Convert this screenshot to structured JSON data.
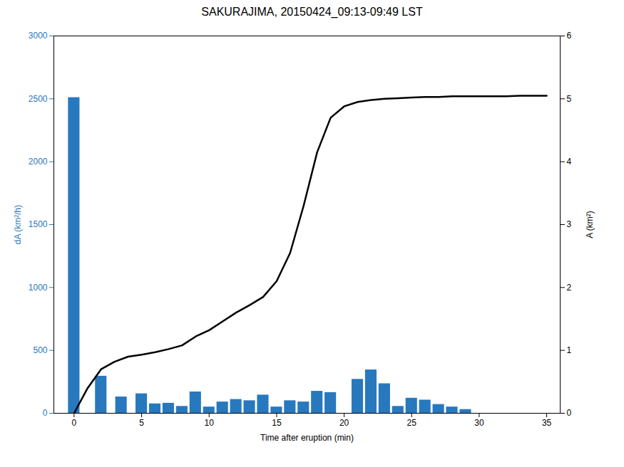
{
  "chart_data": {
    "type": "bar",
    "title": "SAKURAJIMA, 20150424_09:13-09:49 LST",
    "xlabel": "Time after eruption (min)",
    "ylabel": "dA (km²/h)",
    "y2label": "A (km²)",
    "series": [
      {
        "type": "bar",
        "color": "#2878BE",
        "x": [
          0,
          2,
          3.5,
          5,
          6,
          7,
          8,
          9,
          10,
          11,
          12,
          13,
          14,
          15,
          16,
          17,
          18,
          19,
          20,
          21,
          22,
          23,
          24,
          25,
          26,
          27,
          28,
          29,
          30,
          31,
          32,
          33,
          34
        ],
        "values": [
          2510,
          295,
          130,
          155,
          75,
          80,
          55,
          170,
          50,
          90,
          110,
          100,
          145,
          50,
          100,
          90,
          175,
          165,
          0,
          270,
          345,
          235,
          55,
          120,
          105,
          70,
          50,
          30,
          0,
          0,
          0,
          0,
          0
        ]
      },
      {
        "type": "line",
        "axis": "y2",
        "color": "#000000",
        "x": [
          0,
          1,
          2,
          3,
          4,
          5,
          6,
          7,
          8,
          9,
          10,
          11,
          12,
          13,
          14,
          15,
          16,
          17,
          18,
          19,
          20,
          21,
          22,
          23,
          24,
          25,
          26,
          27,
          28,
          29,
          30,
          31,
          32,
          33,
          34,
          35
        ],
        "values": [
          0.0,
          0.4,
          0.7,
          0.82,
          0.9,
          0.93,
          0.97,
          1.02,
          1.08,
          1.22,
          1.32,
          1.46,
          1.6,
          1.72,
          1.85,
          2.1,
          2.55,
          3.3,
          4.15,
          4.7,
          4.88,
          4.95,
          4.98,
          5.0,
          5.01,
          5.02,
          5.03,
          5.03,
          5.04,
          5.04,
          5.04,
          5.04,
          5.04,
          5.05,
          5.05,
          5.05
        ]
      }
    ],
    "xlim": [
      -1.5,
      36
    ],
    "xticks": [
      0,
      5,
      10,
      15,
      20,
      25,
      30,
      35
    ],
    "ylim": [
      0,
      3000
    ],
    "yticks": [
      0,
      500,
      1000,
      1500,
      2000,
      2500,
      3000
    ],
    "y2lim": [
      0,
      6
    ],
    "y2ticks": [
      0,
      1,
      2,
      3,
      4,
      5,
      6
    ]
  }
}
